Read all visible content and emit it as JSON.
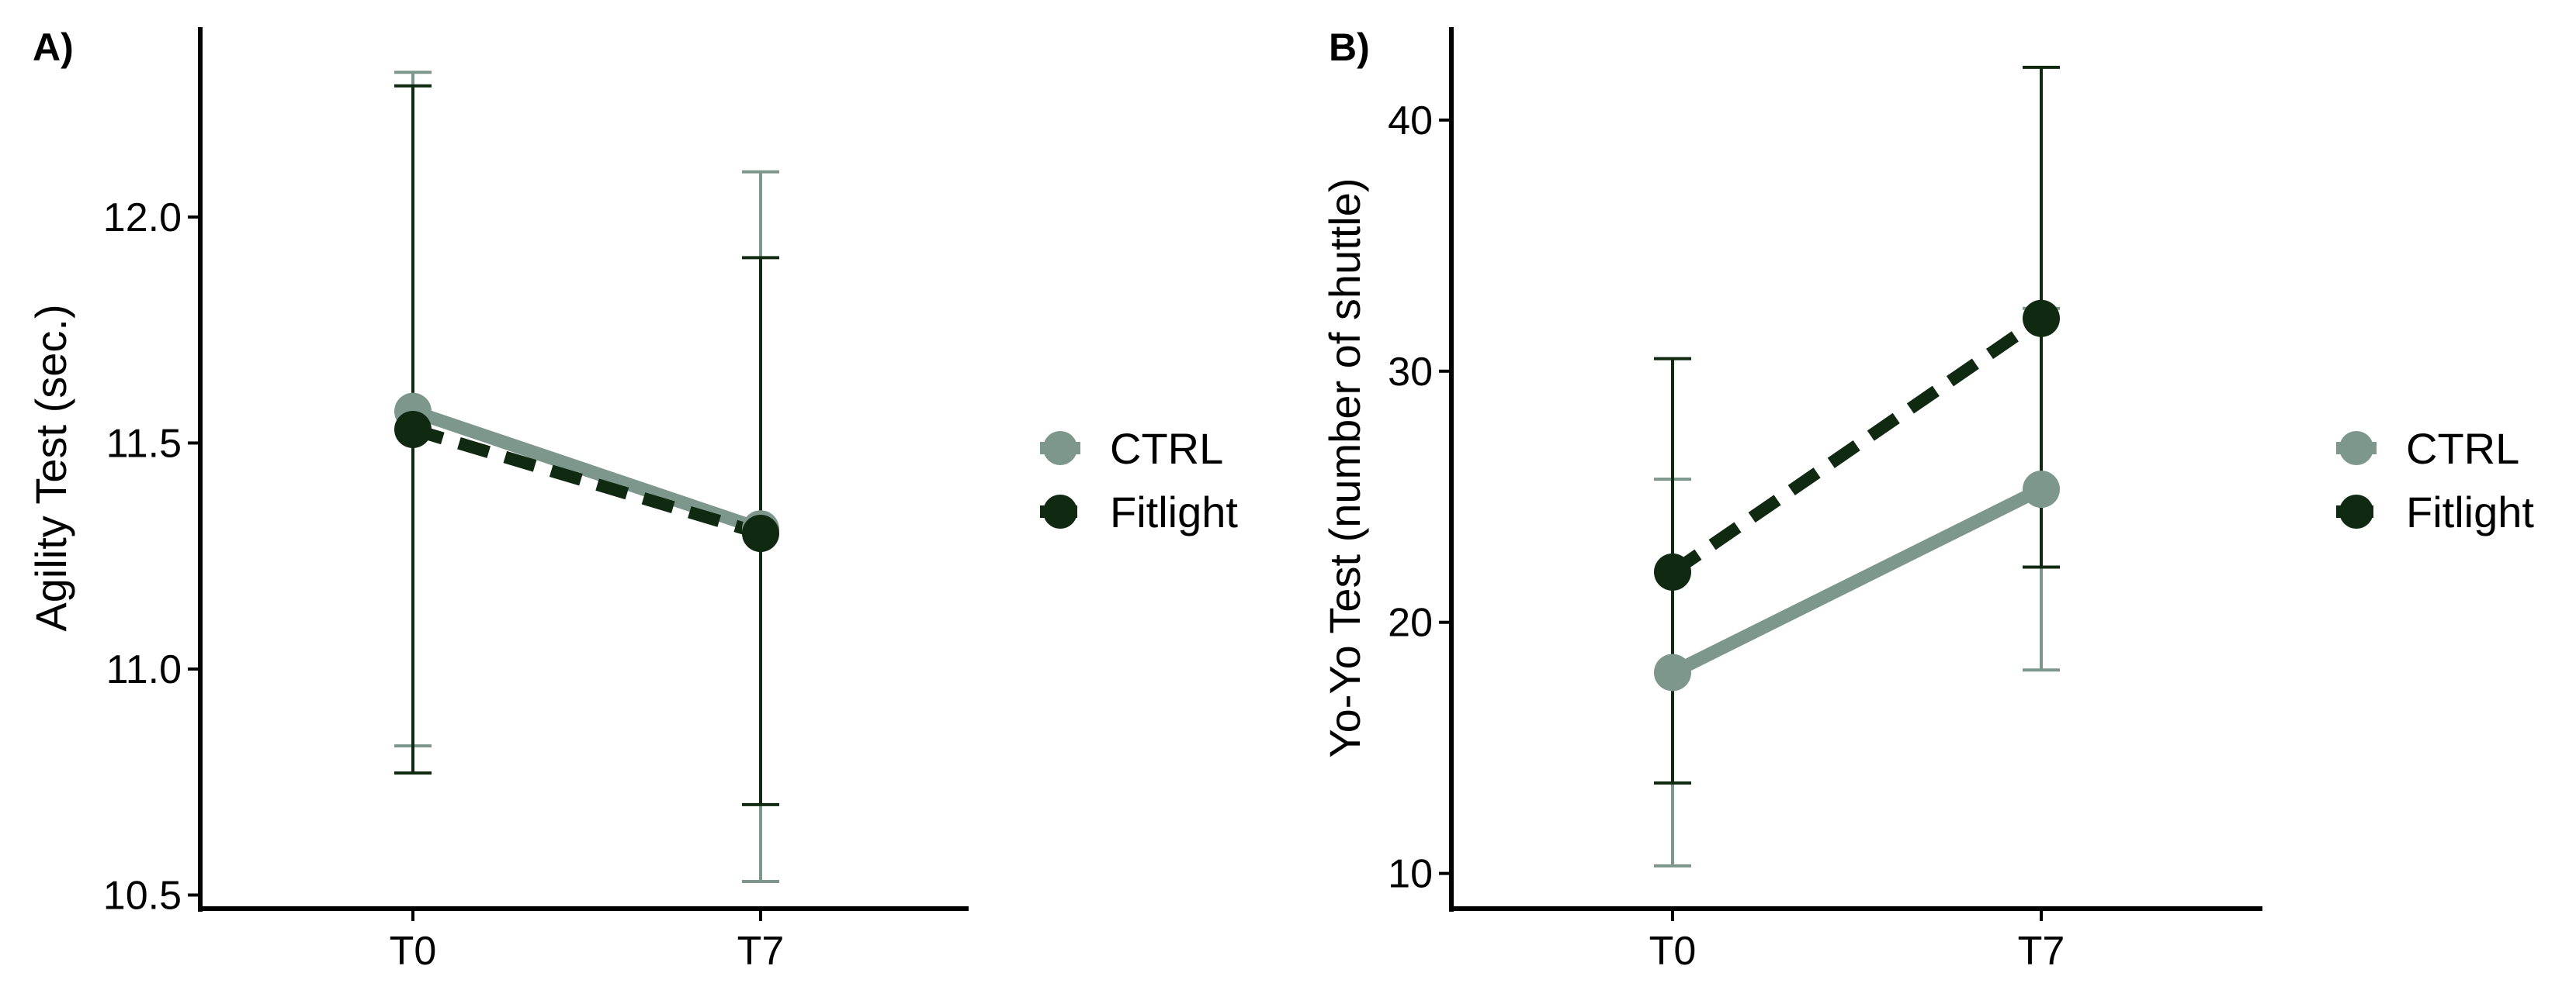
{
  "figure": {
    "description_label": "Two-panel line chart with error bars"
  },
  "colors": {
    "ctrl": "#7d978c",
    "fitlight": "#0f2a10",
    "axis": "#000000"
  },
  "chart_data": [
    {
      "panel_label": "A)",
      "type": "line",
      "categories": [
        "T0",
        "T7"
      ],
      "xlabel": "",
      "ylabel": "Agility Test (sec.)",
      "ylim": [
        10.47,
        12.42
      ],
      "yticks": [
        "10.5",
        "11.0",
        "11.5",
        "12.0"
      ],
      "series": [
        {
          "name": "CTRL",
          "line_style": "solid",
          "values": [
            11.57,
            11.31
          ],
          "err_low": [
            10.83,
            10.53
          ],
          "err_high": [
            12.32,
            12.1
          ]
        },
        {
          "name": "Fitlight",
          "line_style": "dashed",
          "values": [
            11.53,
            11.3
          ],
          "err_low": [
            10.77,
            10.7
          ],
          "err_high": [
            12.29,
            11.91
          ]
        }
      ],
      "legend": {
        "position": "right",
        "entries": [
          "CTRL",
          "Fitlight"
        ]
      }
    },
    {
      "panel_label": "B)",
      "type": "line",
      "categories": [
        "T0",
        "T7"
      ],
      "xlabel": "",
      "ylabel": "Yo-Yo Test (number of shuttle)",
      "ylim": [
        8.6,
        43.7
      ],
      "yticks": [
        "10",
        "20",
        "30",
        "40"
      ],
      "series": [
        {
          "name": "CTRL",
          "line_style": "solid",
          "values": [
            18.0,
            25.3
          ],
          "err_low": [
            10.3,
            18.1
          ],
          "err_high": [
            25.7,
            32.5
          ]
        },
        {
          "name": "Fitlight",
          "line_style": "dashed",
          "values": [
            22.0,
            32.1
          ],
          "err_low": [
            13.6,
            22.2
          ],
          "err_high": [
            30.5,
            42.1
          ]
        }
      ],
      "legend": {
        "position": "right",
        "entries": [
          "CTRL",
          "Fitlight"
        ]
      }
    }
  ]
}
